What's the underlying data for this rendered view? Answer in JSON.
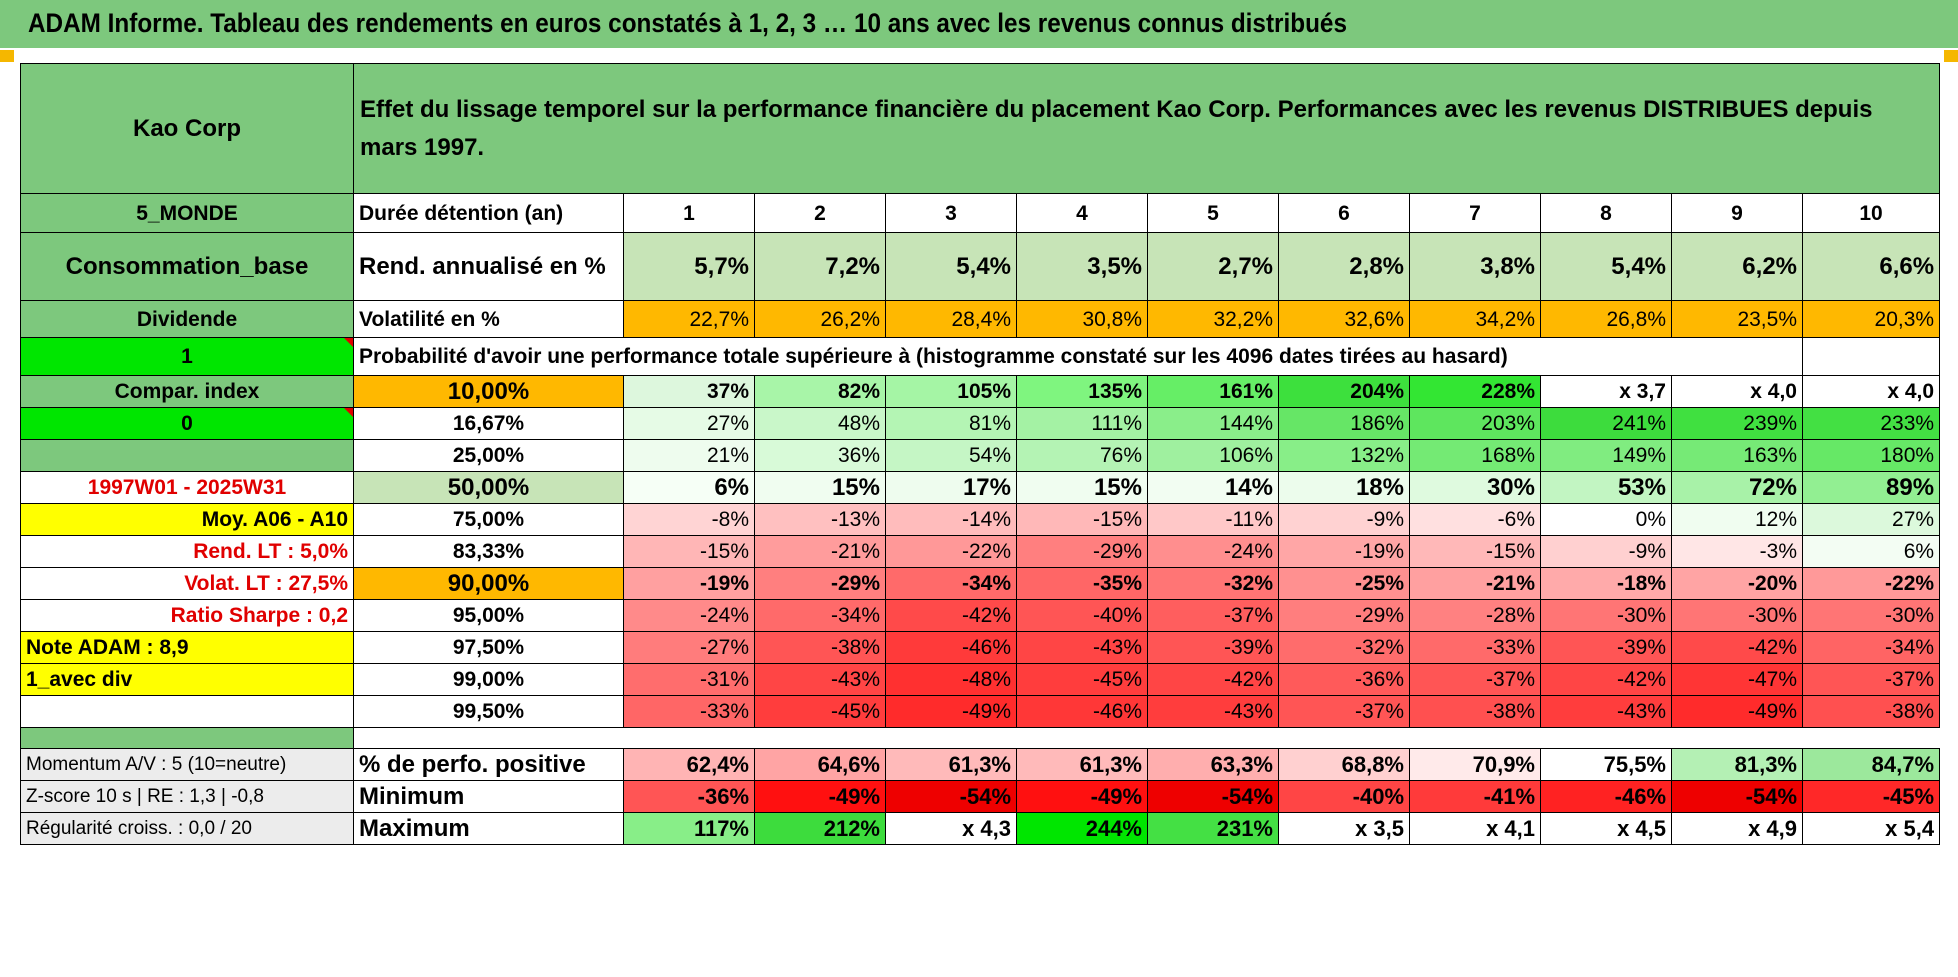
{
  "title": "ADAM Informe. Tableau des rendements en euros constatés à 1, 2, 3 … 10 ans avec les revenus connus distribués",
  "header": {
    "company": "Kao Corp",
    "description": "Effet du lissage temporel sur la performance financière du placement Kao Corp. Performances avec les revenus DISTRIBUES depuis mars 1997."
  },
  "left": {
    "zone": "5_MONDE",
    "sector": "Consommation_base",
    "type": "Dividende",
    "flag1": "1",
    "compar_label": "Compar. index",
    "flag2": "0",
    "period": "1997W01 - 2025W31",
    "moy": "Moy. A06 - A10",
    "rend_lt": "Rend. LT :    5,0%",
    "volat_lt": "Volat. LT :    27,5%",
    "sharpe": "Ratio Sharpe :    0,2",
    "note": "Note ADAM : 8,9",
    "mode": "1_avec div",
    "momentum": "Momentum A/V : 5 (10=neutre)",
    "zscore": "Z-score 10 s | RE : 1,3 | -0,8",
    "regularite": "Régularité croiss. : 0,0 / 20"
  },
  "labels": {
    "duree": "Durée détention (an)",
    "rend": "Rend. annualisé en %",
    "vol": "Volatilité en %",
    "proba": "Probabilité d'avoir une performance totale supérieure à (histogramme constaté sur les 4096 dates tirées au hasard)",
    "pos": "% de perfo. positive",
    "min": "Minimum",
    "max": "Maximum"
  },
  "years": [
    "1",
    "2",
    "3",
    "4",
    "5",
    "6",
    "7",
    "8",
    "9",
    "10"
  ],
  "rend": [
    "5,7%",
    "7,2%",
    "5,4%",
    "3,5%",
    "2,7%",
    "2,8%",
    "3,8%",
    "5,4%",
    "6,2%",
    "6,6%"
  ],
  "vol": [
    "22,7%",
    "26,2%",
    "28,4%",
    "30,8%",
    "32,2%",
    "32,6%",
    "34,2%",
    "26,8%",
    "23,5%",
    "20,3%"
  ],
  "prob_rows": [
    {
      "p": "10,00%",
      "v": [
        "37%",
        "82%",
        "105%",
        "135%",
        "161%",
        "204%",
        "228%",
        "x 3,7",
        "x 4,0",
        "x 4,0"
      ]
    },
    {
      "p": "16,67%",
      "v": [
        "27%",
        "48%",
        "81%",
        "111%",
        "144%",
        "186%",
        "203%",
        "241%",
        "239%",
        "233%"
      ]
    },
    {
      "p": "25,00%",
      "v": [
        "21%",
        "36%",
        "54%",
        "76%",
        "106%",
        "132%",
        "168%",
        "149%",
        "163%",
        "180%"
      ]
    },
    {
      "p": "50,00%",
      "v": [
        "6%",
        "15%",
        "17%",
        "15%",
        "14%",
        "18%",
        "30%",
        "53%",
        "72%",
        "89%"
      ]
    },
    {
      "p": "75,00%",
      "v": [
        "-8%",
        "-13%",
        "-14%",
        "-15%",
        "-11%",
        "-9%",
        "-6%",
        "0%",
        "12%",
        "27%"
      ]
    },
    {
      "p": "83,33%",
      "v": [
        "-15%",
        "-21%",
        "-22%",
        "-29%",
        "-24%",
        "-19%",
        "-15%",
        "-9%",
        "-3%",
        "6%"
      ]
    },
    {
      "p": "90,00%",
      "v": [
        "-19%",
        "-29%",
        "-34%",
        "-35%",
        "-32%",
        "-25%",
        "-21%",
        "-18%",
        "-20%",
        "-22%"
      ]
    },
    {
      "p": "95,00%",
      "v": [
        "-24%",
        "-34%",
        "-42%",
        "-40%",
        "-37%",
        "-29%",
        "-28%",
        "-30%",
        "-30%",
        "-30%"
      ]
    },
    {
      "p": "97,50%",
      "v": [
        "-27%",
        "-38%",
        "-46%",
        "-43%",
        "-39%",
        "-32%",
        "-33%",
        "-39%",
        "-42%",
        "-34%"
      ]
    },
    {
      "p": "99,00%",
      "v": [
        "-31%",
        "-43%",
        "-48%",
        "-45%",
        "-42%",
        "-36%",
        "-37%",
        "-42%",
        "-47%",
        "-37%"
      ]
    },
    {
      "p": "99,50%",
      "v": [
        "-33%",
        "-45%",
        "-49%",
        "-46%",
        "-43%",
        "-37%",
        "-38%",
        "-43%",
        "-49%",
        "-38%"
      ]
    }
  ],
  "pos": [
    "62,4%",
    "64,6%",
    "61,3%",
    "61,3%",
    "63,3%",
    "68,8%",
    "70,9%",
    "75,5%",
    "81,3%",
    "84,7%"
  ],
  "min": [
    "-36%",
    "-49%",
    "-54%",
    "-49%",
    "-54%",
    "-40%",
    "-41%",
    "-46%",
    "-54%",
    "-45%"
  ],
  "max": [
    "117%",
    "212%",
    "x 4,3",
    "244%",
    "231%",
    "x 3,5",
    "x 4,1",
    "x 4,5",
    "x 4,9",
    "x 5,4"
  ],
  "colors": {
    "title_bg": "#7dc87d",
    "label_bg": "#7dc87d",
    "light_green": "#c7e4b7",
    "orange": "#ffb800",
    "yellow": "#ffff00",
    "bright_green": "#00e600",
    "red_text": "#e00000",
    "prob_cells": [
      [
        "#ddf7dd",
        "#a8f5a8",
        "#a5f5a5",
        "#7ff57f",
        "#66ee66",
        "#3de03d",
        "#33e633",
        "#ffffff",
        "#ffffff",
        "#ffffff"
      ],
      [
        "#e6fbe6",
        "#c9f7c9",
        "#b4f5b4",
        "#a4f2a4",
        "#8aee8a",
        "#66e666",
        "#5ee65e",
        "#3ddc3d",
        "#40e040",
        "#43e043"
      ],
      [
        "#eefcee",
        "#d8fad8",
        "#c5f6c5",
        "#b4f3b4",
        "#9ff09f",
        "#88ee88",
        "#74ea74",
        "#80ec80",
        "#76ea76",
        "#66e866"
      ],
      [
        "#f6fff6",
        "#f0fdf0",
        "#eefcee",
        "#f0fdf0",
        "#f2fdf2",
        "#ecfcec",
        "#dffadf",
        "#c2f5c2",
        "#a8f2a8",
        "#92ef92"
      ],
      [
        "#ffd4d4",
        "#ffc0c0",
        "#ffbcbc",
        "#ffb8b8",
        "#ffc8c8",
        "#ffd2d2",
        "#ffe0e0",
        "#ffffff",
        "#f0fdf0",
        "#dcf9dc"
      ],
      [
        "#ffb6b6",
        "#ff9c9c",
        "#ff9898",
        "#ff7f7f",
        "#ff8e8e",
        "#ffa6a6",
        "#ffb8b8",
        "#ffd0d0",
        "#ffe6e6",
        "#f3fdf3"
      ],
      [
        "#ffa0a0",
        "#ff7f7f",
        "#ff6a6a",
        "#ff6666",
        "#ff7575",
        "#ff9090",
        "#ffa0a0",
        "#ffaaaa",
        "#ffa4a4",
        "#ff9999"
      ],
      [
        "#ff8a8a",
        "#ff6a6a",
        "#ff4a4a",
        "#ff5555",
        "#ff5e5e",
        "#ff7e7e",
        "#ff8181",
        "#ff7575",
        "#ff7575",
        "#ff7575"
      ],
      [
        "#ff7c7c",
        "#ff5555",
        "#ff3a3a",
        "#ff4545",
        "#ff5555",
        "#ff6c6c",
        "#ff6a6a",
        "#ff5555",
        "#ff4a4a",
        "#ff6464"
      ],
      [
        "#ff6d6d",
        "#ff4545",
        "#ff3030",
        "#ff3d3d",
        "#ff4545",
        "#ff5a5a",
        "#ff5555",
        "#ff4545",
        "#ff3535",
        "#ff5555"
      ],
      [
        "#ff6666",
        "#ff3d3d",
        "#ff2b2b",
        "#ff3737",
        "#ff3d3d",
        "#ff5555",
        "#ff5050",
        "#ff3d3d",
        "#ff2b2b",
        "#ff5050"
      ]
    ],
    "pos_cells": [
      "#ffb4b4",
      "#ffa4a4",
      "#ffbaba",
      "#ffbaba",
      "#ffaeae",
      "#ffd0d0",
      "#ffeaea",
      "#ffffff",
      "#b4f0b4",
      "#9ce89c"
    ],
    "min_cells": [
      "#ff5555",
      "#ff1010",
      "#ee0000",
      "#ff1010",
      "#ee0000",
      "#ff4545",
      "#ff3a3a",
      "#ff2222",
      "#ee0000",
      "#ff2828"
    ],
    "max_cells": [
      "#88ee88",
      "#3ddc3d",
      "#ffffff",
      "#00e600",
      "#44e044",
      "#ffffff",
      "#ffffff",
      "#ffffff",
      "#ffffff",
      "#ffffff"
    ]
  }
}
